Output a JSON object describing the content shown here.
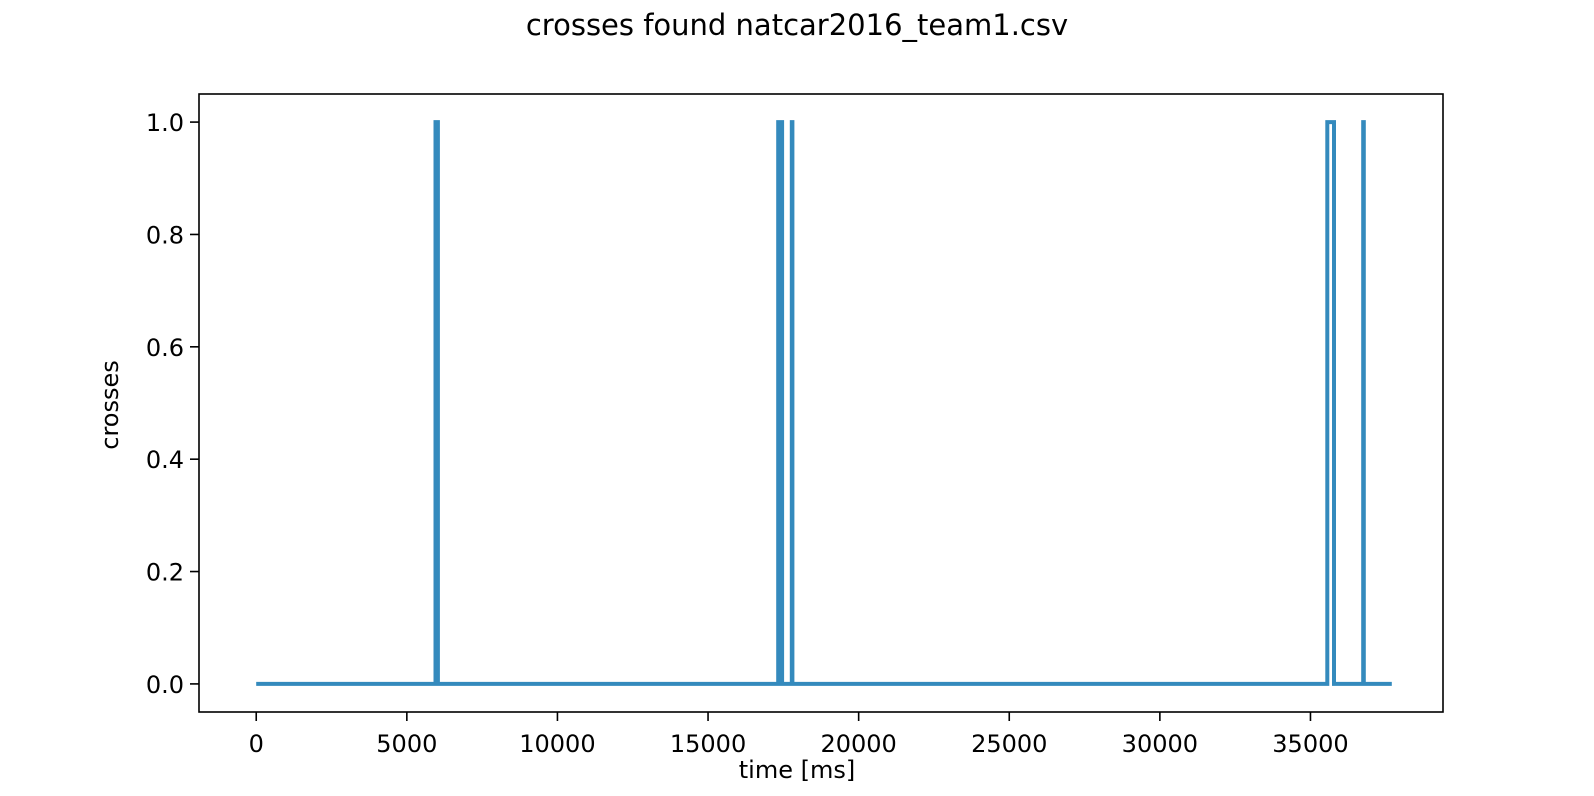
{
  "chart_data": {
    "type": "line",
    "title": "crosses found natcar2016_team1.csv",
    "xlabel": "time [ms]",
    "ylabel": "crosses",
    "xlim": [
      -1900,
      39400
    ],
    "ylim": [
      -0.05,
      1.05
    ],
    "xticks": [
      0,
      5000,
      10000,
      15000,
      20000,
      25000,
      30000,
      35000
    ],
    "xtick_labels": [
      "0",
      "5000",
      "10000",
      "15000",
      "20000",
      "25000",
      "30000",
      "35000"
    ],
    "yticks": [
      0.0,
      0.2,
      0.4,
      0.6,
      0.8,
      1.0
    ],
    "ytick_labels": [
      "0.0",
      "0.2",
      "0.4",
      "0.6",
      "0.8",
      "1.0"
    ],
    "grid": false,
    "line_color": "#348abd",
    "series": [
      {
        "x": [
          0,
          5950,
          5950,
          6030,
          6030,
          17330,
          17330,
          17460,
          17460,
          17780,
          17780,
          17800,
          17800,
          35560,
          35560,
          35780,
          35780,
          36750,
          36750,
          36770,
          36770,
          37700
        ],
        "y": [
          0,
          0,
          1,
          1,
          0,
          0,
          1,
          1,
          0,
          0,
          1,
          1,
          0,
          0,
          1,
          1,
          0,
          0,
          1,
          1,
          0,
          0
        ]
      }
    ]
  }
}
